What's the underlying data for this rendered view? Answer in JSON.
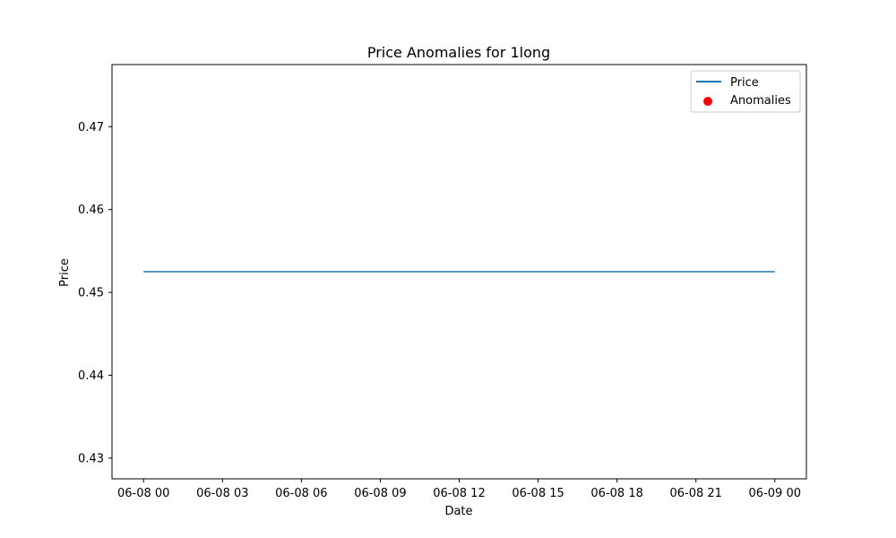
{
  "chart_data": {
    "type": "line",
    "title": "Price Anomalies for 1long",
    "xlabel": "Date",
    "ylabel": "Price",
    "x_ticks": [
      "06-08 00",
      "06-08 03",
      "06-08 06",
      "06-08 09",
      "06-08 12",
      "06-08 15",
      "06-08 18",
      "06-08 21",
      "06-09 00"
    ],
    "x_tick_hours": [
      0,
      3,
      6,
      9,
      12,
      15,
      18,
      21,
      24
    ],
    "xlim_hours": [
      -1.2,
      25.2
    ],
    "y_ticks": [
      "0.43",
      "0.44",
      "0.45",
      "0.46",
      "0.47"
    ],
    "y_tick_values": [
      0.43,
      0.44,
      0.45,
      0.46,
      0.47
    ],
    "ylim": [
      0.4275,
      0.4775
    ],
    "grid": false,
    "legend_position": "top-right",
    "series": [
      {
        "name": "Price",
        "kind": "line",
        "color": "#1f77b4",
        "x_hours": [
          0,
          24
        ],
        "y": [
          0.4525,
          0.4525
        ]
      },
      {
        "name": "Anomalies",
        "kind": "scatter",
        "color": "#ff0000",
        "x_hours": [],
        "y": []
      }
    ]
  }
}
